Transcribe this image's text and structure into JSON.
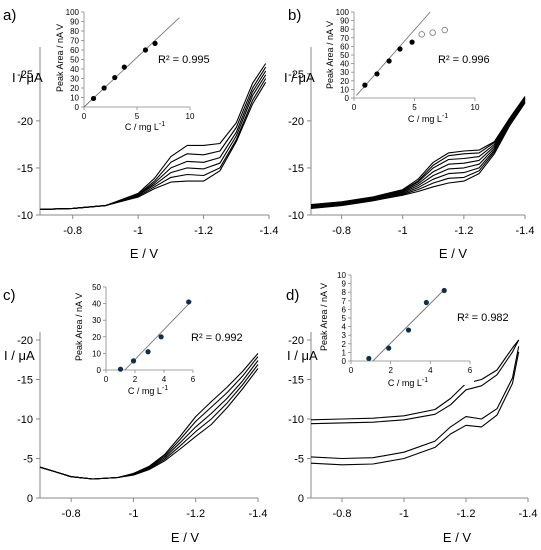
{
  "chart_data": [
    {
      "panel_label": "a)",
      "type": "line",
      "xlabel": "E / V",
      "ylabel": "I / μA",
      "xlim": [
        -0.7,
        -1.4
      ],
      "ylim": [
        -10,
        -27
      ],
      "x_ticks": [
        -0.8,
        -1,
        -1.2,
        -1.4
      ],
      "x_tick_labels": [
        "-0.8",
        "-1",
        "-1.2",
        "-1.4"
      ],
      "y_ticks": [
        -10,
        -15,
        -20,
        -25
      ],
      "y_tick_labels": [
        "-10",
        "-15",
        "-20",
        "-25"
      ],
      "series": [
        {
          "x": [
            -0.7,
            -0.8,
            -0.9,
            -1.0,
            -1.05,
            -1.1,
            -1.15,
            -1.2,
            -1.25,
            -1.3,
            -1.35,
            -1.39
          ],
          "y": [
            -10.6,
            -10.7,
            -11.0,
            -11.9,
            -12.8,
            -13.5,
            -13.6,
            -13.6,
            -14.7,
            -17.8,
            -21.8,
            -24.1
          ]
        },
        {
          "x": [
            -0.7,
            -0.8,
            -0.9,
            -1.0,
            -1.05,
            -1.1,
            -1.15,
            -1.2,
            -1.25,
            -1.3,
            -1.35,
            -1.39
          ],
          "y": [
            -10.6,
            -10.7,
            -11.0,
            -12.0,
            -13.0,
            -14.0,
            -14.3,
            -14.2,
            -15.0,
            -18.0,
            -22.2,
            -24.5
          ]
        },
        {
          "x": [
            -0.7,
            -0.8,
            -0.9,
            -1.0,
            -1.05,
            -1.1,
            -1.15,
            -1.2,
            -1.25,
            -1.3,
            -1.35,
            -1.39
          ],
          "y": [
            -10.6,
            -10.7,
            -11.0,
            -12.1,
            -13.2,
            -14.5,
            -15.0,
            -14.9,
            -15.5,
            -18.4,
            -22.7,
            -24.9
          ]
        },
        {
          "x": [
            -0.7,
            -0.8,
            -0.9,
            -1.0,
            -1.05,
            -1.1,
            -1.15,
            -1.2,
            -1.25,
            -1.3,
            -1.35,
            -1.39
          ],
          "y": [
            -10.6,
            -10.7,
            -11.0,
            -12.1,
            -13.4,
            -15.0,
            -15.7,
            -15.6,
            -16.1,
            -18.8,
            -23.1,
            -25.3
          ]
        },
        {
          "x": [
            -0.7,
            -0.8,
            -0.9,
            -1.0,
            -1.05,
            -1.1,
            -1.15,
            -1.2,
            -1.25,
            -1.3,
            -1.35,
            -1.39
          ],
          "y": [
            -10.6,
            -10.7,
            -11.0,
            -12.2,
            -13.6,
            -15.6,
            -16.5,
            -16.4,
            -16.8,
            -19.3,
            -23.5,
            -25.7
          ]
        },
        {
          "x": [
            -0.7,
            -0.8,
            -0.9,
            -1.0,
            -1.05,
            -1.1,
            -1.15,
            -1.2,
            -1.25,
            -1.3,
            -1.35,
            -1.39
          ],
          "y": [
            -10.6,
            -10.7,
            -11.0,
            -12.3,
            -13.9,
            -16.2,
            -17.4,
            -17.4,
            -17.6,
            -19.8,
            -24.0,
            -26.1
          ]
        }
      ],
      "inset": {
        "type": "scatter",
        "xlabel": "C / mg L",
        "xlabel_sup": "-1",
        "ylabel": "Peak Area / nA V",
        "xlim": [
          0,
          10
        ],
        "ylim": [
          0,
          100
        ],
        "x_tick_labels": [
          "0",
          "5",
          "10"
        ],
        "y_tick_labels": [
          "0",
          "10",
          "20",
          "30",
          "40",
          "50",
          "60",
          "70",
          "80",
          "90",
          "100"
        ],
        "points": [
          {
            "x": 0.9,
            "y": 9
          },
          {
            "x": 1.9,
            "y": 20
          },
          {
            "x": 2.9,
            "y": 31
          },
          {
            "x": 3.8,
            "y": 42
          },
          {
            "x": 5.8,
            "y": 60
          },
          {
            "x": 6.7,
            "y": 67
          }
        ],
        "fit": {
          "x": [
            0,
            9
          ],
          "y": [
            0,
            94
          ]
        },
        "annotation": "R² = 0.995"
      }
    },
    {
      "panel_label": "b)",
      "type": "line",
      "xlabel": "E / V",
      "ylabel": "I / μA",
      "xlim": [
        -0.7,
        -1.4
      ],
      "ylim": [
        -10,
        -27
      ],
      "x_ticks": [
        -0.8,
        -1,
        -1.2,
        -1.4
      ],
      "x_tick_labels": [
        "-0.8",
        "-1",
        "-1.2",
        "-1.4"
      ],
      "y_ticks": [
        -10,
        -15,
        -20,
        -25
      ],
      "y_tick_labels": [
        "-10",
        "-15",
        "-20",
        "-25"
      ],
      "series": [
        {
          "x": [
            -0.7,
            -0.8,
            -0.9,
            -1.0,
            -1.05,
            -1.1,
            -1.15,
            -1.2,
            -1.25,
            -1.3,
            -1.35,
            -1.4
          ],
          "y": [
            -10.7,
            -11.0,
            -11.5,
            -12.1,
            -12.5,
            -13.0,
            -13.4,
            -13.6,
            -14.4,
            -16.5,
            -19.5,
            -21.9
          ]
        },
        {
          "x": [
            -0.7,
            -0.8,
            -0.9,
            -1.0,
            -1.05,
            -1.1,
            -1.15,
            -1.2,
            -1.25,
            -1.3,
            -1.35,
            -1.4
          ],
          "y": [
            -10.8,
            -11.1,
            -11.6,
            -12.2,
            -12.7,
            -13.4,
            -13.9,
            -14.0,
            -14.7,
            -16.7,
            -19.7,
            -22.0
          ]
        },
        {
          "x": [
            -0.7,
            -0.8,
            -0.9,
            -1.0,
            -1.05,
            -1.1,
            -1.15,
            -1.2,
            -1.25,
            -1.3,
            -1.35,
            -1.4
          ],
          "y": [
            -10.8,
            -11.1,
            -11.6,
            -12.3,
            -12.9,
            -13.8,
            -14.4,
            -14.5,
            -15.0,
            -16.9,
            -19.8,
            -22.1
          ]
        },
        {
          "x": [
            -0.7,
            -0.8,
            -0.9,
            -1.0,
            -1.05,
            -1.1,
            -1.15,
            -1.2,
            -1.25,
            -1.3,
            -1.35,
            -1.4
          ],
          "y": [
            -10.9,
            -11.2,
            -11.7,
            -12.4,
            -13.1,
            -14.2,
            -14.9,
            -15.0,
            -15.4,
            -17.1,
            -19.9,
            -22.2
          ]
        },
        {
          "x": [
            -0.7,
            -0.8,
            -0.9,
            -1.0,
            -1.05,
            -1.1,
            -1.15,
            -1.2,
            -1.25,
            -1.3,
            -1.35,
            -1.4
          ],
          "y": [
            -10.9,
            -11.2,
            -11.7,
            -12.5,
            -13.3,
            -14.6,
            -15.4,
            -15.5,
            -15.8,
            -17.3,
            -20.0,
            -22.3
          ]
        },
        {
          "x": [
            -0.7,
            -0.8,
            -0.9,
            -1.0,
            -1.05,
            -1.1,
            -1.15,
            -1.2,
            -1.25,
            -1.3,
            -1.35,
            -1.4
          ],
          "y": [
            -11.0,
            -11.3,
            -11.8,
            -12.6,
            -13.5,
            -15.0,
            -15.9,
            -16.0,
            -16.2,
            -17.5,
            -20.1,
            -22.4
          ]
        },
        {
          "x": [
            -0.7,
            -0.8,
            -0.9,
            -1.0,
            -1.05,
            -1.1,
            -1.15,
            -1.2,
            -1.25,
            -1.3,
            -1.35,
            -1.4
          ],
          "y": [
            -11.0,
            -11.3,
            -11.8,
            -12.6,
            -13.6,
            -15.3,
            -16.3,
            -16.5,
            -16.6,
            -17.7,
            -20.2,
            -22.5
          ]
        },
        {
          "x": [
            -0.7,
            -0.8,
            -0.9,
            -1.0,
            -1.05,
            -1.1,
            -1.15,
            -1.2,
            -1.25,
            -1.3,
            -1.35,
            -1.4
          ],
          "y": [
            -11.1,
            -11.4,
            -11.9,
            -12.7,
            -13.8,
            -15.6,
            -16.6,
            -16.8,
            -16.9,
            -17.8,
            -20.3,
            -22.6
          ]
        }
      ],
      "inset": {
        "type": "scatter",
        "xlabel": "C / mg L",
        "xlabel_sup": "-1",
        "ylabel": "Peak Area / nA V",
        "xlim": [
          0,
          10
        ],
        "ylim": [
          0,
          100
        ],
        "x_tick_labels": [
          "0",
          "5",
          "10"
        ],
        "y_tick_labels": [
          "0",
          "10",
          "20",
          "30",
          "40",
          "50",
          "60",
          "70",
          "80",
          "90",
          "100"
        ],
        "points": [
          {
            "x": 0.9,
            "y": 15
          },
          {
            "x": 1.9,
            "y": 28
          },
          {
            "x": 2.9,
            "y": 43
          },
          {
            "x": 3.8,
            "y": 57
          },
          {
            "x": 4.8,
            "y": 65
          }
        ],
        "open_points": [
          {
            "x": 5.6,
            "y": 74
          },
          {
            "x": 6.5,
            "y": 76
          },
          {
            "x": 7.5,
            "y": 79
          }
        ],
        "fit": {
          "x": [
            0.2,
            6.3
          ],
          "y": [
            3,
            100
          ]
        },
        "annotation": "R² = 0.996"
      }
    },
    {
      "panel_label": "c)",
      "type": "line",
      "xlabel": "E / V",
      "ylabel": "I / μA",
      "xlim": [
        -0.7,
        -1.4
      ],
      "ylim": [
        0,
        -20
      ],
      "x_ticks": [
        -0.8,
        -1,
        -1.2,
        -1.4
      ],
      "x_tick_labels": [
        "-0.8",
        "-1",
        "-1.2",
        "-1.4"
      ],
      "y_ticks": [
        0,
        -5,
        -10,
        -15,
        -20
      ],
      "y_tick_labels": [
        "0",
        "-5",
        "-10",
        "-15",
        "-20"
      ],
      "series": [
        {
          "x": [
            -0.7,
            -0.75,
            -0.8,
            -0.87,
            -0.95,
            -1.0,
            -1.05,
            -1.1,
            -1.15,
            -1.2,
            -1.25,
            -1.3,
            -1.35,
            -1.4
          ],
          "y": [
            -3.9,
            -3.3,
            -2.7,
            -2.4,
            -2.6,
            -2.9,
            -3.6,
            -4.7,
            -6.2,
            -7.8,
            -9.3,
            -11.4,
            -13.8,
            -16.4
          ]
        },
        {
          "x": [
            -0.7,
            -0.75,
            -0.8,
            -0.87,
            -0.95,
            -1.0,
            -1.05,
            -1.1,
            -1.15,
            -1.2,
            -1.25,
            -1.3,
            -1.35,
            -1.4
          ],
          "y": [
            -3.9,
            -3.3,
            -2.7,
            -2.4,
            -2.6,
            -3.0,
            -3.7,
            -4.9,
            -6.6,
            -8.4,
            -10.0,
            -12.0,
            -14.3,
            -16.9
          ]
        },
        {
          "x": [
            -0.7,
            -0.75,
            -0.8,
            -0.87,
            -0.95,
            -1.0,
            -1.05,
            -1.1,
            -1.15,
            -1.2,
            -1.25,
            -1.3,
            -1.35,
            -1.4
          ],
          "y": [
            -3.9,
            -3.3,
            -2.7,
            -2.4,
            -2.6,
            -3.0,
            -3.8,
            -5.1,
            -7.0,
            -9.0,
            -10.7,
            -12.6,
            -14.8,
            -17.4
          ]
        },
        {
          "x": [
            -0.7,
            -0.75,
            -0.8,
            -0.87,
            -0.95,
            -1.0,
            -1.05,
            -1.1,
            -1.15,
            -1.2,
            -1.25,
            -1.3,
            -1.35,
            -1.4
          ],
          "y": [
            -3.9,
            -3.3,
            -2.7,
            -2.4,
            -2.6,
            -3.1,
            -3.9,
            -5.3,
            -7.4,
            -9.7,
            -11.5,
            -13.3,
            -15.4,
            -17.9
          ]
        },
        {
          "x": [
            -0.7,
            -0.75,
            -0.8,
            -0.87,
            -0.95,
            -1.0,
            -1.05,
            -1.1,
            -1.15,
            -1.2,
            -1.25,
            -1.3,
            -1.35,
            -1.4
          ],
          "y": [
            -3.9,
            -3.3,
            -2.7,
            -2.4,
            -2.6,
            -3.1,
            -4.0,
            -5.5,
            -7.8,
            -10.3,
            -12.2,
            -14.0,
            -16.0,
            -18.3
          ]
        }
      ],
      "inset": {
        "type": "scatter",
        "xlabel": "C / mg L",
        "xlabel_sup": "-1",
        "ylabel": "Peak Area / nA V",
        "xlim": [
          0,
          6
        ],
        "ylim": [
          0,
          50
        ],
        "x_tick_labels": [
          "0",
          "2",
          "4",
          "6"
        ],
        "y_tick_labels": [
          "0",
          "10",
          "20",
          "30",
          "40",
          "50"
        ],
        "points": [
          {
            "x": 1.0,
            "y": 0.5
          },
          {
            "x": 1.9,
            "y": 5.5
          },
          {
            "x": 2.9,
            "y": 11
          },
          {
            "x": 3.8,
            "y": 20
          },
          {
            "x": 5.7,
            "y": 41
          }
        ],
        "fit": {
          "x": [
            1.3,
            5.9
          ],
          "y": [
            0,
            41.5
          ]
        },
        "annotation": "R² = 0.992"
      }
    },
    {
      "panel_label": "d)",
      "type": "line",
      "xlabel": "E / V",
      "ylabel": "I / μA",
      "xlim": [
        -0.7,
        -1.4
      ],
      "ylim": [
        0,
        -20
      ],
      "x_ticks": [
        -0.8,
        -1,
        -1.2,
        -1.4
      ],
      "x_tick_labels": [
        "-0.8",
        "-1",
        "-1.2",
        "-1.4"
      ],
      "y_ticks": [
        0,
        -5,
        -10,
        -15,
        -20
      ],
      "y_tick_labels": [
        "0",
        "-5",
        "-10",
        "-15",
        "-20"
      ],
      "series": [
        {
          "x": [
            -0.7,
            -0.8,
            -0.9,
            -1.0,
            -1.1,
            -1.15,
            -1.2,
            -1.25,
            -1.3,
            -1.35,
            -1.37
          ],
          "y": [
            -4.4,
            -4.2,
            -4.3,
            -5.0,
            -6.4,
            -8.1,
            -9.2,
            -9.0,
            -10.5,
            -14.5,
            -18.5
          ]
        },
        {
          "x": [
            -0.7,
            -0.8,
            -0.9,
            -1.0,
            -1.1,
            -1.15,
            -1.2,
            -1.25,
            -1.3,
            -1.35,
            -1.37
          ],
          "y": [
            -5.2,
            -5.0,
            -5.1,
            -5.8,
            -7.2,
            -9.0,
            -10.3,
            -10.0,
            -11.3,
            -15.2,
            -19.2
          ]
        },
        {
          "x": [
            -0.7,
            -0.8,
            -0.9,
            -1.0,
            -1.1,
            -1.15,
            -1.2,
            -1.25,
            -1.3,
            -1.35,
            -1.37
          ],
          "y": [
            -9.4,
            -9.5,
            -9.6,
            -9.9,
            -10.6,
            -11.8,
            -13.7,
            -14.2,
            -15.6,
            -18.5,
            -20.0
          ]
        },
        {
          "x": [
            -0.7,
            -0.8,
            -0.9,
            -1.0,
            -1.1,
            -1.15,
            -1.2,
            -1.25,
            -1.3,
            -1.35,
            -1.37
          ],
          "y": [
            -9.9,
            -10.0,
            -10.1,
            -10.4,
            -11.2,
            -12.6,
            -14.5,
            -15.0,
            -16.2,
            -19.0,
            -20.0
          ]
        }
      ],
      "inset": {
        "type": "scatter",
        "xlabel": "C / mg L",
        "xlabel_sup": "-1",
        "ylabel": "Peak Area / nA V",
        "xlim": [
          0,
          6
        ],
        "ylim": [
          0,
          10
        ],
        "x_tick_labels": [
          "0",
          "2",
          "4",
          "6"
        ],
        "y_tick_labels": [
          "0",
          "1",
          "2",
          "3",
          "4",
          "5",
          "6",
          "7",
          "8",
          "9",
          "10"
        ],
        "points": [
          {
            "x": 0.9,
            "y": 0.3
          },
          {
            "x": 1.9,
            "y": 1.5
          },
          {
            "x": 2.9,
            "y": 3.6
          },
          {
            "x": 3.8,
            "y": 6.8
          },
          {
            "x": 4.7,
            "y": 8.2
          }
        ],
        "fit": {
          "x": [
            1.1,
            4.7
          ],
          "y": [
            0,
            8.3
          ]
        },
        "annotation": "R² = 0.982"
      }
    }
  ]
}
